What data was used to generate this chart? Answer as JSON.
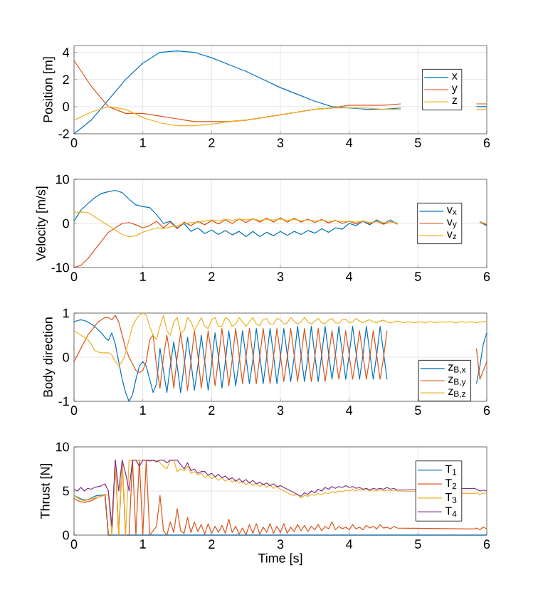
{
  "chart_data": [
    {
      "type": "line",
      "ylabel": "Position [m]",
      "xlim": [
        0,
        6
      ],
      "xticks": [
        0,
        1,
        2,
        3,
        4,
        5,
        6
      ],
      "ylim": [
        -2,
        4.5
      ],
      "yticks": [
        -2,
        0,
        2,
        4
      ],
      "grid": true,
      "legend": "right",
      "marker": "none",
      "x": [
        0,
        0.25,
        0.5,
        0.75,
        1,
        1.25,
        1.5,
        1.75,
        2,
        2.25,
        2.5,
        2.75,
        3,
        3.25,
        3.5,
        3.75,
        4,
        4.25,
        4.5,
        4.75,
        5,
        5.25,
        5.5,
        5.85,
        6
      ],
      "series": [
        {
          "name": "x",
          "color": "#0072bd",
          "values": [
            -2,
            -1,
            0.5,
            2,
            3.2,
            4.0,
            4.1,
            4.0,
            3.6,
            3.1,
            2.6,
            2.0,
            1.4,
            0.9,
            0.4,
            0,
            -0.1,
            -0.2,
            -0.2,
            -0.1,
            null,
            null,
            null,
            0,
            0
          ]
        },
        {
          "name": "y",
          "color": "#d95319",
          "values": [
            3.4,
            1.5,
            0,
            -0.5,
            -0.5,
            -0.7,
            -0.9,
            -1.1,
            -1.1,
            -1.1,
            -1.0,
            -0.8,
            -0.6,
            -0.4,
            -0.2,
            -0.1,
            0.1,
            0.1,
            0.1,
            0.2,
            null,
            null,
            null,
            0.2,
            0.2
          ]
        },
        {
          "name": "z",
          "color": "#edb120",
          "values": [
            -1,
            -0.4,
            0,
            -0.2,
            -0.8,
            -1.2,
            -1.4,
            -1.4,
            -1.3,
            -1.1,
            -1.0,
            -0.8,
            -0.6,
            -0.4,
            -0.2,
            -0.1,
            -0.1,
            -0.1,
            -0.2,
            -0.2,
            null,
            null,
            null,
            -0.2,
            -0.2
          ]
        }
      ]
    },
    {
      "type": "line",
      "ylabel": "Velocity [m/s]",
      "xlim": [
        0,
        6
      ],
      "xticks": [
        0,
        1,
        2,
        3,
        4,
        5,
        6
      ],
      "ylim": [
        -10,
        10
      ],
      "yticks": [
        -10,
        0,
        10
      ],
      "grid": true,
      "legend": "right",
      "marker": "none",
      "x": [
        0,
        0.1,
        0.2,
        0.3,
        0.4,
        0.5,
        0.6,
        0.7,
        0.8,
        0.9,
        1,
        1.1,
        1.2,
        1.3,
        1.4,
        1.5,
        1.6,
        1.7,
        1.8,
        1.9,
        2,
        2.1,
        2.2,
        2.3,
        2.4,
        2.5,
        2.6,
        2.7,
        2.8,
        2.9,
        3,
        3.1,
        3.2,
        3.3,
        3.4,
        3.5,
        3.6,
        3.7,
        3.8,
        3.9,
        4,
        4.1,
        4.2,
        4.3,
        4.4,
        4.5,
        4.6,
        4.7,
        4.8,
        4.9,
        5,
        5.1,
        5.2,
        5.3,
        5.4,
        5.5,
        5.6,
        5.7,
        5.8,
        5.9,
        6
      ],
      "series": [
        {
          "name": "v$_{x}$",
          "color": "#0072bd",
          "values": [
            0.5,
            3,
            4.5,
            5.8,
            6.8,
            7.2,
            7.5,
            7,
            5.5,
            4.2,
            3.8,
            3.6,
            2,
            0,
            0.5,
            -1,
            0,
            -1.8,
            -1,
            -2.3,
            -1.5,
            -2.5,
            -1.6,
            -2.6,
            -1.8,
            -3,
            -1.8,
            -3,
            -2,
            -2.8,
            -1.8,
            -2.7,
            -1.8,
            -2.5,
            -1.6,
            -2.2,
            -1.2,
            -2,
            -1,
            -1.3,
            0,
            -0.5,
            0.5,
            -0.3,
            0.8,
            0,
            0.8,
            -0.2,
            null,
            null,
            null,
            null,
            null,
            null,
            null,
            null,
            null,
            null,
            null,
            0.3,
            -0.5
          ]
        },
        {
          "name": "v$_{y}$",
          "color": "#d95319",
          "values": [
            -10,
            -9.5,
            -8,
            -6,
            -4,
            -2,
            -1,
            0,
            0.2,
            -0.3,
            -1,
            -0.5,
            0.5,
            -1,
            0.3,
            -1.2,
            0.3,
            -0.5,
            0.5,
            -0.3,
            0.6,
            -0.1,
            0.8,
            0,
            1,
            0.2,
            1.1,
            0.3,
            1.2,
            0.3,
            1.3,
            0.3,
            1.2,
            0.3,
            1,
            0.2,
            0.9,
            0.1,
            0.7,
            0,
            0.5,
            -0.1,
            0.6,
            0,
            0.5,
            -0.2,
            0.4,
            0,
            null,
            null,
            null,
            null,
            null,
            null,
            null,
            null,
            null,
            null,
            null,
            0.4,
            -0.3
          ]
        },
        {
          "name": "v$_{z}$",
          "color": "#edb120",
          "values": [
            2.5,
            2.6,
            2.5,
            1.5,
            0.5,
            -0.5,
            -1.5,
            -2.5,
            -3,
            -2.8,
            -2,
            -1.5,
            -1,
            -1.2,
            -0.8,
            -0.5,
            0,
            0.2,
            0.3,
            0.5,
            0.8,
            0.6,
            0.9,
            0.7,
            1,
            0.8,
            1,
            0.7,
            0.9,
            0.8,
            1,
            0.7,
            0.9,
            0.6,
            0.8,
            0.6,
            0.7,
            0.5,
            0.6,
            0.4,
            0.5,
            0.3,
            0.5,
            0.2,
            0.4,
            0.2,
            0.3,
            0.1,
            null,
            null,
            null,
            null,
            null,
            null,
            null,
            null,
            null,
            null,
            null,
            0.2,
            0
          ]
        }
      ]
    },
    {
      "type": "line",
      "ylabel": "Body direction",
      "xlim": [
        0,
        6
      ],
      "xticks": [
        0,
        1,
        2,
        3,
        4,
        5,
        6
      ],
      "ylim": [
        -1,
        1
      ],
      "yticks": [
        -1,
        0,
        1
      ],
      "grid": true,
      "legend": "bottom right",
      "marker": "none",
      "x": [
        0,
        0.05,
        0.1,
        0.15,
        0.2,
        0.25,
        0.3,
        0.35,
        0.4,
        0.45,
        0.5,
        0.55,
        0.6,
        0.65,
        0.7,
        0.75,
        0.8,
        0.85,
        0.9,
        0.95,
        1,
        1.05,
        1.1,
        1.15,
        1.2,
        1.25,
        1.3,
        1.35,
        1.4,
        1.45,
        1.5,
        1.55,
        1.6,
        1.65,
        1.7,
        1.75,
        1.8,
        1.85,
        1.9,
        1.95,
        2,
        2.05,
        2.1,
        2.15,
        2.2,
        2.25,
        2.3,
        2.35,
        2.4,
        2.45,
        2.5,
        2.55,
        2.6,
        2.65,
        2.7,
        2.75,
        2.8,
        2.85,
        2.9,
        2.95,
        3,
        3.05,
        3.1,
        3.15,
        3.2,
        3.25,
        3.3,
        3.35,
        3.4,
        3.45,
        3.5,
        3.55,
        3.6,
        3.65,
        3.7,
        3.75,
        3.8,
        3.85,
        3.9,
        3.95,
        4,
        4.05,
        4.1,
        4.15,
        4.2,
        4.25,
        4.3,
        4.35,
        4.4,
        4.45,
        4.5,
        4.55,
        4.6,
        4.65,
        4.7,
        4.75,
        4.8,
        4.85,
        4.9,
        4.95,
        5,
        5.05,
        5.1,
        5.15,
        5.2,
        5.25,
        5.3,
        5.35,
        5.4,
        5.45,
        5.5,
        5.55,
        5.6,
        5.65,
        5.7,
        5.75,
        5.8,
        5.85,
        5.9,
        5.95,
        6
      ],
      "series": [
        {
          "name": "z$_{B,x}$",
          "color": "#0072bd",
          "values": [
            0.8,
            0.83,
            0.85,
            0.83,
            0.8,
            0.75,
            0.7,
            0.62,
            0.55,
            0.45,
            0.38,
            0.55,
            0.3,
            -0.1,
            -0.5,
            -0.8,
            -1.0,
            -0.85,
            -0.5,
            -0.2,
            -0.1,
            -0.2,
            -0.5,
            -0.8,
            -0.6,
            0.2,
            -0.3,
            -0.8,
            -0.2,
            0.35,
            -0.2,
            -0.8,
            -0.2,
            0.45,
            -0.1,
            -0.75,
            -0.2,
            0.5,
            -0.1,
            -0.75,
            -0.15,
            0.55,
            0,
            -0.7,
            -0.1,
            0.6,
            0,
            -0.65,
            -0.1,
            0.6,
            0,
            -0.6,
            -0.05,
            0.65,
            0.05,
            -0.6,
            0,
            0.65,
            0.05,
            -0.6,
            0,
            0.65,
            0.05,
            -0.55,
            0,
            0.7,
            0.05,
            -0.55,
            0,
            0.7,
            0.05,
            -0.55,
            0.05,
            0.7,
            0.1,
            -0.5,
            0.05,
            0.7,
            0.1,
            -0.5,
            0.05,
            0.7,
            0.1,
            -0.5,
            0.05,
            0.7,
            0.1,
            -0.5,
            0.05,
            0.7,
            0.1,
            -0.5,
            null,
            null,
            null,
            null,
            null,
            null,
            null,
            null,
            null,
            null,
            null,
            null,
            null,
            null,
            null,
            null,
            null,
            null,
            null,
            null,
            null,
            null,
            null,
            null,
            null,
            -0.6,
            -0.2,
            0.3,
            0.55
          ]
        },
        {
          "name": "z$_{B,y}$",
          "color": "#d95319",
          "values": [
            -0.1,
            0.05,
            0.2,
            0.35,
            0.5,
            0.6,
            0.7,
            0.8,
            0.85,
            0.9,
            0.9,
            0.85,
            0.95,
            0.8,
            0.5,
            0.2,
            0,
            -0.15,
            -0.3,
            -0.35,
            -0.3,
            -0.1,
            0.4,
            0.5,
            -0.2,
            -0.7,
            0,
            0.5,
            0,
            -0.7,
            0,
            0.55,
            0,
            -0.75,
            -0.1,
            0.6,
            0.05,
            -0.7,
            -0.1,
            0.6,
            0.05,
            -0.65,
            -0.05,
            0.65,
            0.05,
            -0.65,
            -0.05,
            0.65,
            0.05,
            -0.6,
            0,
            0.65,
            0.05,
            -0.6,
            0,
            0.65,
            0.05,
            -0.6,
            0,
            0.65,
            0.05,
            -0.55,
            0,
            0.65,
            0.05,
            -0.55,
            0,
            0.65,
            0.05,
            -0.55,
            0,
            0.65,
            0.05,
            -0.55,
            0,
            0.6,
            0.05,
            -0.5,
            0,
            0.6,
            0.05,
            -0.5,
            0,
            0.6,
            0.05,
            -0.5,
            0,
            0.6,
            0.05,
            -0.5,
            0,
            0.6,
            null,
            null,
            null,
            null,
            null,
            null,
            null,
            null,
            null,
            null,
            null,
            null,
            null,
            null,
            null,
            null,
            null,
            null,
            null,
            null,
            null,
            null,
            null,
            null,
            null,
            0.2,
            -0.5,
            -0.3,
            -0.1
          ]
        },
        {
          "name": "z$_{B,z}$",
          "color": "#edb120",
          "values": [
            0.6,
            0.55,
            0.5,
            0.45,
            0.4,
            0.3,
            0.15,
            0.12,
            0.1,
            0.1,
            0.1,
            0.05,
            -0.1,
            -0.2,
            -0.1,
            0.1,
            0.4,
            0.7,
            0.85,
            0.95,
            1.0,
            0.95,
            0.7,
            0.5,
            0.4,
            0.7,
            0.95,
            0.6,
            0.5,
            0.8,
            0.9,
            0.55,
            0.6,
            0.9,
            0.8,
            0.6,
            0.75,
            0.9,
            0.7,
            0.65,
            0.85,
            0.9,
            0.7,
            0.7,
            0.9,
            0.85,
            0.7,
            0.75,
            0.9,
            0.8,
            0.7,
            0.8,
            0.9,
            0.75,
            0.72,
            0.85,
            0.88,
            0.75,
            0.75,
            0.88,
            0.85,
            0.75,
            0.78,
            0.9,
            0.82,
            0.75,
            0.8,
            0.9,
            0.8,
            0.75,
            0.82,
            0.88,
            0.78,
            0.76,
            0.84,
            0.88,
            0.78,
            0.77,
            0.85,
            0.86,
            0.78,
            0.8,
            0.88,
            0.82,
            0.78,
            0.82,
            0.85,
            0.8,
            0.78,
            0.82,
            0.84,
            0.8,
            0.78,
            0.8,
            0.82,
            0.8,
            0.78,
            0.8,
            0.8,
            0.78,
            0.8,
            0.8,
            0.78,
            0.8,
            0.8,
            0.78,
            0.8,
            0.8,
            0.79,
            0.8,
            0.8,
            0.78,
            0.8,
            0.8,
            0.79,
            0.8,
            0.8,
            0.78,
            0.8,
            0.8,
            0.82
          ]
        }
      ]
    },
    {
      "type": "line",
      "xlabel": "Time [s]",
      "ylabel": "Thrust [N]",
      "xlim": [
        0,
        6
      ],
      "xticks": [
        0,
        1,
        2,
        3,
        4,
        5,
        6
      ],
      "ylim": [
        0,
        10
      ],
      "yticks": [
        0,
        5,
        10
      ],
      "grid": true,
      "legend": "right",
      "marker": "none",
      "x": [
        0,
        0.05,
        0.1,
        0.15,
        0.2,
        0.25,
        0.3,
        0.35,
        0.4,
        0.45,
        0.5,
        0.55,
        0.6,
        0.65,
        0.7,
        0.75,
        0.8,
        0.85,
        0.9,
        0.95,
        1,
        1.05,
        1.1,
        1.15,
        1.2,
        1.25,
        1.3,
        1.35,
        1.4,
        1.45,
        1.5,
        1.55,
        1.6,
        1.65,
        1.7,
        1.75,
        1.8,
        1.85,
        1.9,
        1.95,
        2,
        2.05,
        2.1,
        2.15,
        2.2,
        2.25,
        2.3,
        2.35,
        2.4,
        2.45,
        2.5,
        2.55,
        2.6,
        2.65,
        2.7,
        2.75,
        2.8,
        2.85,
        2.9,
        2.95,
        3,
        3.05,
        3.1,
        3.15,
        3.2,
        3.25,
        3.3,
        3.35,
        3.4,
        3.45,
        3.5,
        3.55,
        3.6,
        3.65,
        3.7,
        3.75,
        3.8,
        3.85,
        3.9,
        3.95,
        4,
        4.05,
        4.1,
        4.15,
        4.2,
        4.25,
        4.3,
        4.35,
        4.4,
        4.45,
        4.5,
        4.55,
        4.6,
        4.65,
        4.7,
        5.82,
        5.85,
        5.9,
        5.95,
        6
      ],
      "series": [
        {
          "name": "T$_{1}$",
          "color": "#0072bd",
          "x": [
            0,
            0.05,
            0.1,
            0.15,
            0.2,
            0.25,
            0.3,
            0.35,
            0.4,
            0.45,
            0.5,
            4.7,
            5.82,
            6
          ],
          "values": [
            4.5,
            4.3,
            4.1,
            4.0,
            4.0,
            4.2,
            4.4,
            4.5,
            4.5,
            4.6,
            0,
            0,
            0,
            0
          ]
        },
        {
          "name": "T$_{2}$",
          "color": "#d95319",
          "values": [
            4.2,
            3.9,
            3.8,
            3.7,
            3.8,
            3.9,
            4.1,
            4.3,
            4.4,
            4.6,
            0,
            0,
            8.5,
            0,
            8.5,
            0,
            0,
            8.5,
            0,
            8.5,
            0,
            8.5,
            0,
            0.5,
            1,
            4.5,
            0.5,
            0,
            1.5,
            0.3,
            3,
            0.5,
            0.2,
            2,
            0.3,
            1.5,
            0.4,
            1.2,
            0.1,
            1.3,
            0.2,
            1,
            0.3,
            1.1,
            0.2,
            1.8,
            0.3,
            1,
            0.1,
            0.8,
            0,
            1.2,
            0.2,
            1.3,
            0.1,
            0.9,
            0.3,
            1.3,
            0.2,
            1,
            0.3,
            1.3,
            0.2,
            0.9,
            0.4,
            1.2,
            0.5,
            1.1,
            0.4,
            1.0,
            0.6,
            1.2,
            0.5,
            1.0,
            0.7,
            1.5,
            0.6,
            1.0,
            0.7,
            0.9,
            0.6,
            1.2,
            0.7,
            0.9,
            0.6,
            1.1,
            0.8,
            1.0,
            0.7,
            1.2,
            0.8,
            0.9,
            0.7,
            1.0,
            0.8,
            0.7,
            0.8,
            0.6,
            0.9,
            0.7
          ]
        },
        {
          "name": "T$_{3}$",
          "color": "#edb120",
          "values": [
            4.5,
            4.2,
            4.0,
            3.9,
            4.0,
            4.1,
            4.2,
            4.3,
            4.4,
            4.6,
            4.5,
            0,
            8.5,
            0,
            8.5,
            0,
            8.5,
            8.5,
            8.5,
            8.5,
            8.5,
            8.5,
            8.5,
            8.5,
            8.5,
            8.2,
            7.8,
            7.5,
            8.5,
            8.5,
            7.2,
            7.5,
            7.3,
            7.8,
            7.0,
            7.2,
            6.8,
            7.0,
            6.5,
            6.8,
            6.4,
            6.6,
            6.2,
            6.5,
            6.1,
            6.4,
            6.0,
            6.3,
            5.9,
            6.1,
            5.7,
            6.0,
            5.6,
            5.9,
            5.5,
            5.8,
            5.4,
            5.7,
            5.3,
            5.5,
            5.2,
            5.0,
            4.8,
            4.6,
            4.5,
            4.6,
            4.2,
            4.5,
            4.4,
            4.6,
            4.5,
            4.7,
            4.6,
            4.8,
            4.7,
            4.9,
            4.8,
            5.0,
            4.9,
            5.1,
            5.0,
            5.2,
            5.0,
            5.2,
            5.1,
            5.2,
            5.0,
            5.1,
            5.0,
            5.2,
            5.0,
            5.1,
            5.0,
            5.1,
            5.0,
            4.7,
            4.8,
            4.6,
            4.8,
            4.7
          ]
        },
        {
          "name": "T$_{4}$",
          "color": "#7e2f8e",
          "values": [
            5.2,
            5.0,
            5.4,
            5.0,
            5.3,
            5.2,
            5.4,
            5.5,
            5.6,
            5.8,
            5.0,
            1.0,
            8.5,
            5.0,
            8.5,
            7.0,
            5.0,
            8.5,
            8.5,
            7.8,
            8.5,
            8.5,
            8.4,
            8.5,
            8.3,
            8.5,
            8.5,
            8.2,
            8.5,
            8.5,
            8.5,
            8.0,
            7.5,
            8.2,
            7.3,
            7.5,
            7.0,
            7.2,
            7.2,
            6.8,
            7.0,
            6.6,
            6.9,
            6.5,
            6.7,
            6.3,
            6.5,
            6.1,
            6.4,
            6.0,
            6.3,
            5.9,
            6.2,
            5.8,
            6.0,
            5.7,
            5.9,
            5.6,
            5.8,
            5.5,
            5.6,
            5.4,
            5.2,
            5.0,
            4.8,
            4.6,
            4.4,
            4.8,
            4.6,
            5.0,
            4.8,
            5.2,
            5.0,
            5.4,
            5.2,
            5.5,
            5.3,
            5.5,
            5.4,
            5.6,
            5.4,
            5.5,
            5.3,
            5.4,
            5.2,
            5.3,
            5.1,
            5.3,
            5.2,
            5.3,
            5.2,
            5.4,
            5.2,
            5.3,
            5.1,
            5.3,
            5.2,
            5.0,
            5.1,
            5.0
          ]
        }
      ]
    }
  ]
}
